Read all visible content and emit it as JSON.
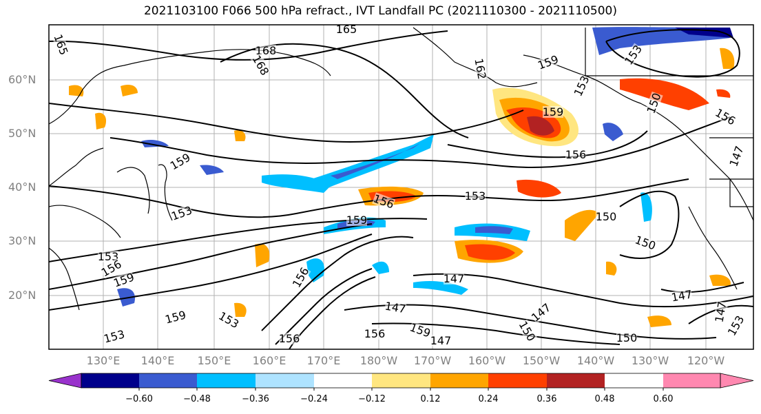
{
  "title": "2021103100 F066 500 hPa refract., IVT Landfall PC (2021110300 - 2021110500)",
  "map": {
    "lat_labels": [
      "60°N",
      "50°N",
      "40°N",
      "30°N",
      "20°N"
    ],
    "lon_labels": [
      "130°E",
      "140°E",
      "150°E",
      "160°E",
      "170°E",
      "180°W",
      "170°W",
      "160°W",
      "150°W",
      "140°W",
      "130°W",
      "120°W"
    ],
    "contour_labels": [
      "165",
      "165",
      "168",
      "168",
      "162",
      "159",
      "159",
      "153",
      "159",
      "156",
      "153",
      "156",
      "159",
      "153",
      "153",
      "156",
      "159",
      "156",
      "153",
      "150",
      "150",
      "159",
      "147",
      "147",
      "147",
      "156",
      "147",
      "159",
      "153",
      "150",
      "147",
      "147",
      "153",
      "147",
      "150",
      "156",
      "153",
      "150",
      "156"
    ]
  },
  "colorbar": {
    "ticks": [
      "−0.60",
      "−0.48",
      "−0.36",
      "−0.24",
      "−0.12",
      "0.12",
      "0.24",
      "0.36",
      "0.48",
      "0.60"
    ],
    "colors": [
      "#9932cc",
      "#00008b",
      "#3a5bd0",
      "#00bfff",
      "#aee3ff",
      "#ffffff",
      "#ffe680",
      "#ffa500",
      "#ff4000",
      "#b22222",
      "#ff88b0"
    ]
  }
}
